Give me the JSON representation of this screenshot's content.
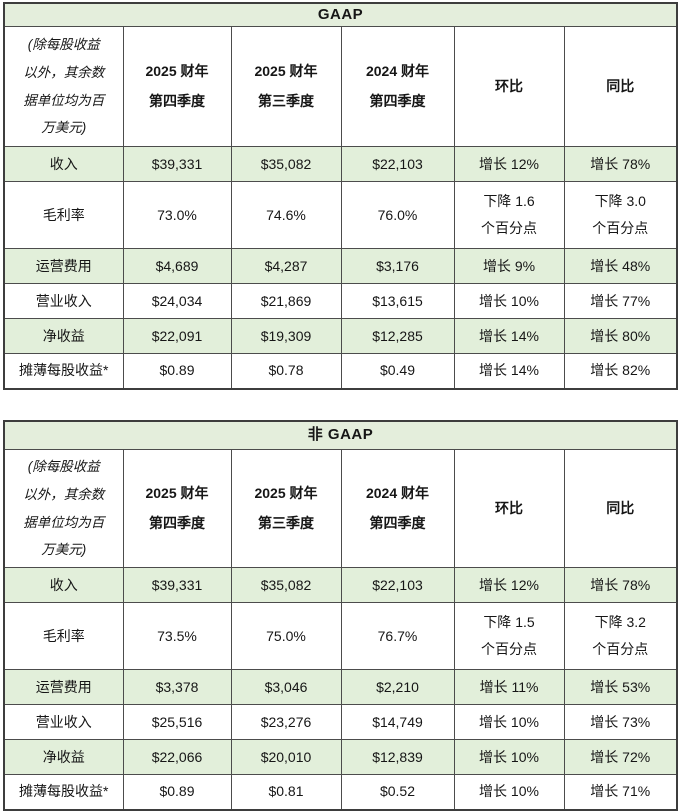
{
  "colors": {
    "row_green": "#e2efda",
    "title_green": "#e4eedc",
    "border": "#4c4c4c",
    "text": "#161616",
    "background": "#ffffff"
  },
  "tables": [
    {
      "title": "GAAP",
      "note": "(除每股收益\n以外，其余数\n据单位均为百\n万美元)",
      "col_headers": {
        "q4fy25": "2025 财年\n第四季度",
        "q3fy25": "2025 财年\n第三季度",
        "q4fy24": "2024 财年\n第四季度",
        "qoq": "环比",
        "yoy": "同比"
      },
      "rows": [
        {
          "label": "收入",
          "c1": "$39,331",
          "c2": "$35,082",
          "c3": "$22,103",
          "c4": "增长 12%",
          "c5": "增长 78%"
        },
        {
          "label": "毛利率",
          "c1": "73.0%",
          "c2": "74.6%",
          "c3": "76.0%",
          "c4": "下降 1.6\n个百分点",
          "c5": "下降 3.0\n个百分点"
        },
        {
          "label": "运营费用",
          "c1": "$4,689",
          "c2": "$4,287",
          "c3": "$3,176",
          "c4": "增长 9%",
          "c5": "增长 48%"
        },
        {
          "label": "营业收入",
          "c1": "$24,034",
          "c2": "$21,869",
          "c3": "$13,615",
          "c4": "增长 10%",
          "c5": "增长 77%"
        },
        {
          "label": "净收益",
          "c1": "$22,091",
          "c2": "$19,309",
          "c3": "$12,285",
          "c4": "增长 14%",
          "c5": "增长 80%"
        },
        {
          "label": "摊薄每股收益*",
          "c1": "$0.89",
          "c2": "$0.78",
          "c3": "$0.49",
          "c4": "增长 14%",
          "c5": "增长 82%"
        }
      ]
    },
    {
      "title": "非 GAAP",
      "note": "(除每股收益\n以外，其余数\n据单位均为百\n万美元)",
      "col_headers": {
        "q4fy25": "2025 财年\n第四季度",
        "q3fy25": "2025 财年\n第三季度",
        "q4fy24": "2024 财年\n第四季度",
        "qoq": "环比",
        "yoy": "同比"
      },
      "rows": [
        {
          "label": "收入",
          "c1": "$39,331",
          "c2": "$35,082",
          "c3": "$22,103",
          "c4": "增长 12%",
          "c5": "增长 78%"
        },
        {
          "label": "毛利率",
          "c1": "73.5%",
          "c2": "75.0%",
          "c3": "76.7%",
          "c4": "下降 1.5\n个百分点",
          "c5": "下降 3.2\n个百分点"
        },
        {
          "label": "运营费用",
          "c1": "$3,378",
          "c2": "$3,046",
          "c3": "$2,210",
          "c4": "增长 11%",
          "c5": "增长 53%"
        },
        {
          "label": "营业收入",
          "c1": "$25,516",
          "c2": "$23,276",
          "c3": "$14,749",
          "c4": "增长 10%",
          "c5": "增长 73%"
        },
        {
          "label": "净收益",
          "c1": "$22,066",
          "c2": "$20,010",
          "c3": "$12,839",
          "c4": "增长 10%",
          "c5": "增长 72%"
        },
        {
          "label": "摊薄每股收益*",
          "c1": "$0.89",
          "c2": "$0.81",
          "c3": "$0.52",
          "c4": "增长 10%",
          "c5": "增长 71%"
        }
      ]
    }
  ]
}
